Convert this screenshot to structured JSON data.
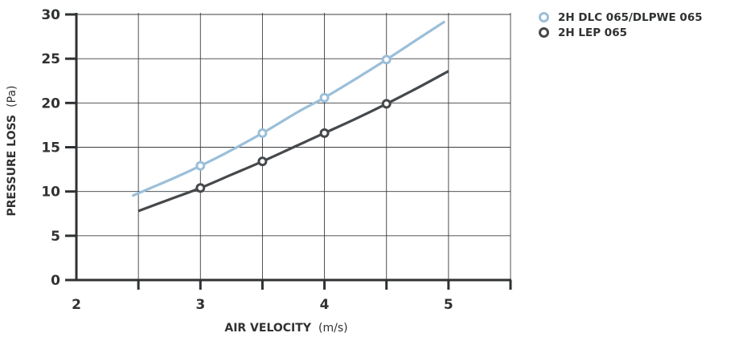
{
  "chart_data": {
    "type": "line",
    "xlabel": "AIR VELOCITY",
    "xlabel_unit": "(m/s)",
    "ylabel": "PRESSURE LOSS",
    "ylabel_unit": "(Pa)",
    "xlim": [
      2,
      5.5
    ],
    "ylim": [
      0,
      30
    ],
    "x_ticks": [
      2,
      3,
      4,
      5
    ],
    "y_ticks": [
      0,
      5,
      10,
      15,
      20,
      25,
      30
    ],
    "grid": true,
    "legend_position": "top-right",
    "series": [
      {
        "name": "2H DLC 065/DLPWE 065",
        "color": "#9bbfd9",
        "line_x": [
          2.45,
          2.6,
          2.8,
          3.0,
          3.2,
          3.5,
          3.8,
          4.0,
          4.25,
          4.5,
          4.75,
          4.97
        ],
        "line_y": [
          9.5,
          10.4,
          11.6,
          12.9,
          14.3,
          16.6,
          19.1,
          20.6,
          22.7,
          24.9,
          27.2,
          29.2
        ],
        "points_x": [
          3.0,
          3.5,
          4.0,
          4.5
        ],
        "points_y": [
          12.9,
          16.6,
          20.6,
          24.9
        ]
      },
      {
        "name": "2H LEP 065",
        "color": "#45494c",
        "line_x": [
          2.5,
          2.75,
          3.0,
          3.25,
          3.5,
          3.75,
          4.0,
          4.25,
          4.5,
          4.75,
          5.0
        ],
        "line_y": [
          7.8,
          9.1,
          10.4,
          11.9,
          13.4,
          15.0,
          16.6,
          18.2,
          19.9,
          21.7,
          23.6
        ],
        "points_x": [
          3.0,
          3.5,
          4.0,
          4.5
        ],
        "points_y": [
          10.4,
          13.4,
          16.6,
          19.9
        ]
      }
    ]
  }
}
